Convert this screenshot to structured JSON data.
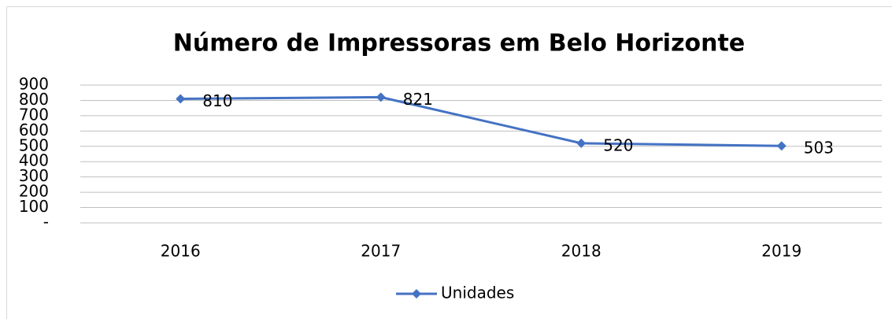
{
  "chart_data": {
    "type": "line",
    "title": "Número de Impressoras em Belo Horizonte",
    "categories": [
      "2016",
      "2017",
      "2018",
      "2019"
    ],
    "series": [
      {
        "name": "Unidades",
        "color": "#4472c4",
        "values": [
          810,
          821,
          520,
          503
        ]
      }
    ],
    "ylim": [
      0,
      900
    ],
    "yticks": [
      {
        "value": 0,
        "label": "-"
      },
      100,
      200,
      300,
      400,
      500,
      600,
      700,
      800,
      900
    ],
    "grid": true,
    "legend": "bottom",
    "data_labels": true
  }
}
